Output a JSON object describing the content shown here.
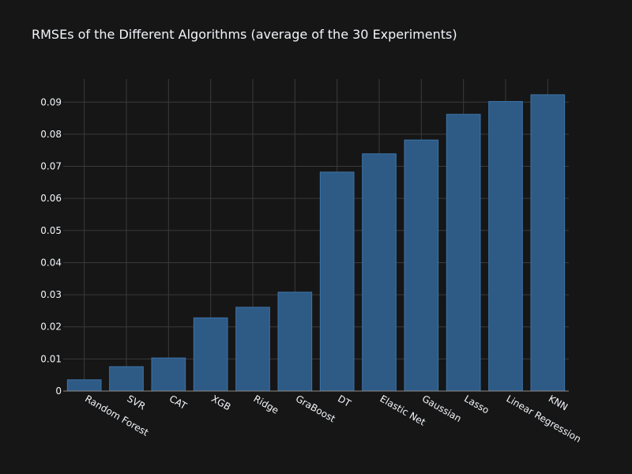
{
  "chart_data": {
    "type": "bar",
    "title": "RMSEs of the Different Algorithms (average of the 30 Experiments)",
    "xlabel": "",
    "ylabel": "",
    "categories": [
      "Random Forest",
      "SVR",
      "CAT",
      "XGB",
      "Ridge",
      "GraBoost",
      "DT",
      "Elastic Net",
      "Gaussian",
      "Lasso",
      "Linear Regression",
      "KNN"
    ],
    "values": [
      0.0035,
      0.0076,
      0.0103,
      0.0228,
      0.0261,
      0.0308,
      0.0682,
      0.0739,
      0.0782,
      0.0862,
      0.0902,
      0.0923
    ],
    "ylim": [
      0,
      0.0972
    ],
    "yticks": [
      0,
      0.01,
      0.02,
      0.03,
      0.04,
      0.05,
      0.06,
      0.07,
      0.08,
      0.09
    ],
    "ytick_labels": [
      "0",
      "0.01",
      "0.02",
      "0.03",
      "0.04",
      "0.05",
      "0.06",
      "0.07",
      "0.08",
      "0.09"
    ],
    "grid": true,
    "colors": {
      "background": "#161616",
      "bar_fill": "#2e5a86",
      "bar_stroke": "#3c74a8",
      "grid": "#3a3a3a",
      "text": "#f2f5fa"
    }
  }
}
